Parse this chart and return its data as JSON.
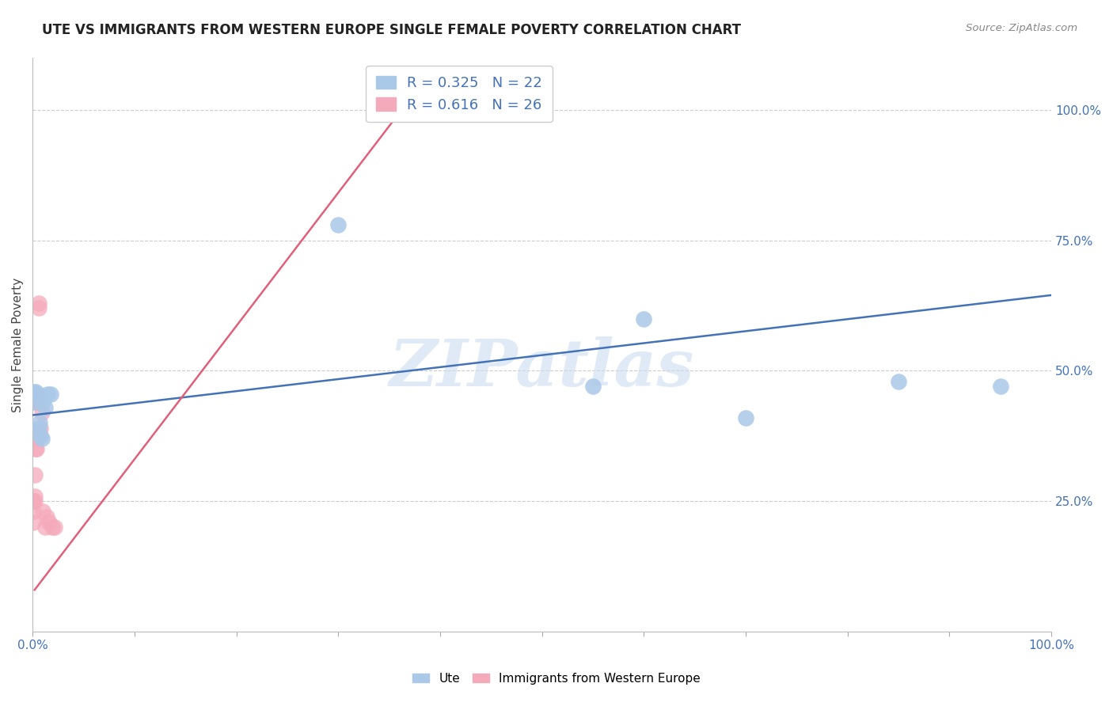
{
  "title": "UTE VS IMMIGRANTS FROM WESTERN EUROPE SINGLE FEMALE POVERTY CORRELATION CHART",
  "source": "Source: ZipAtlas.com",
  "ylabel": "Single Female Poverty",
  "ytick_labels": [
    "100.0%",
    "75.0%",
    "50.0%",
    "25.0%"
  ],
  "ytick_values": [
    1.0,
    0.75,
    0.5,
    0.25
  ],
  "legend1_label_R": "R = 0.325",
  "legend1_label_N": "N = 22",
  "legend2_label_R": "R = 0.616",
  "legend2_label_N": "N = 26",
  "legend1_color": "#aac8e8",
  "legend2_color": "#f5aabb",
  "line1_color": "#4472b8",
  "line2_color": "#e0607a",
  "watermark": "ZIPatlas",
  "watermark_color": "#ccddf0",
  "background_color": "#ffffff",
  "grid_color": "#cccccc",
  "ute_x": [
    0.001,
    0.001,
    0.002,
    0.002,
    0.003,
    0.003,
    0.004,
    0.005,
    0.006,
    0.007,
    0.008,
    0.009,
    0.01,
    0.012,
    0.015,
    0.018,
    0.3,
    0.55,
    0.6,
    0.7,
    0.85,
    0.95
  ],
  "ute_y": [
    0.455,
    0.46,
    0.44,
    0.455,
    0.455,
    0.46,
    0.455,
    0.455,
    0.39,
    0.4,
    0.375,
    0.37,
    0.44,
    0.43,
    0.455,
    0.455,
    0.78,
    0.47,
    0.6,
    0.41,
    0.48,
    0.47
  ],
  "imm_x": [
    0.001,
    0.001,
    0.001,
    0.002,
    0.002,
    0.002,
    0.003,
    0.003,
    0.003,
    0.003,
    0.003,
    0.004,
    0.004,
    0.005,
    0.005,
    0.006,
    0.006,
    0.007,
    0.008,
    0.009,
    0.01,
    0.012,
    0.014,
    0.016,
    0.019,
    0.022
  ],
  "imm_y": [
    0.21,
    0.23,
    0.25,
    0.25,
    0.26,
    0.3,
    0.35,
    0.38,
    0.44,
    0.44,
    0.455,
    0.37,
    0.35,
    0.44,
    0.45,
    0.62,
    0.63,
    0.38,
    0.39,
    0.42,
    0.23,
    0.2,
    0.22,
    0.21,
    0.2,
    0.2
  ],
  "ute_line_x0": 0.0,
  "ute_line_x1": 1.0,
  "ute_line_y0": 0.415,
  "ute_line_y1": 0.645,
  "imm_line_x0": 0.002,
  "imm_line_x1": 0.37,
  "imm_line_y0": 0.08,
  "imm_line_y1": 1.02,
  "xlim_lo": 0.0,
  "xlim_hi": 1.0,
  "ylim_lo": 0.0,
  "ylim_hi": 1.1,
  "xtick_intermediate": [
    0.1,
    0.2,
    0.3,
    0.4,
    0.5,
    0.6,
    0.7,
    0.8,
    0.9
  ]
}
